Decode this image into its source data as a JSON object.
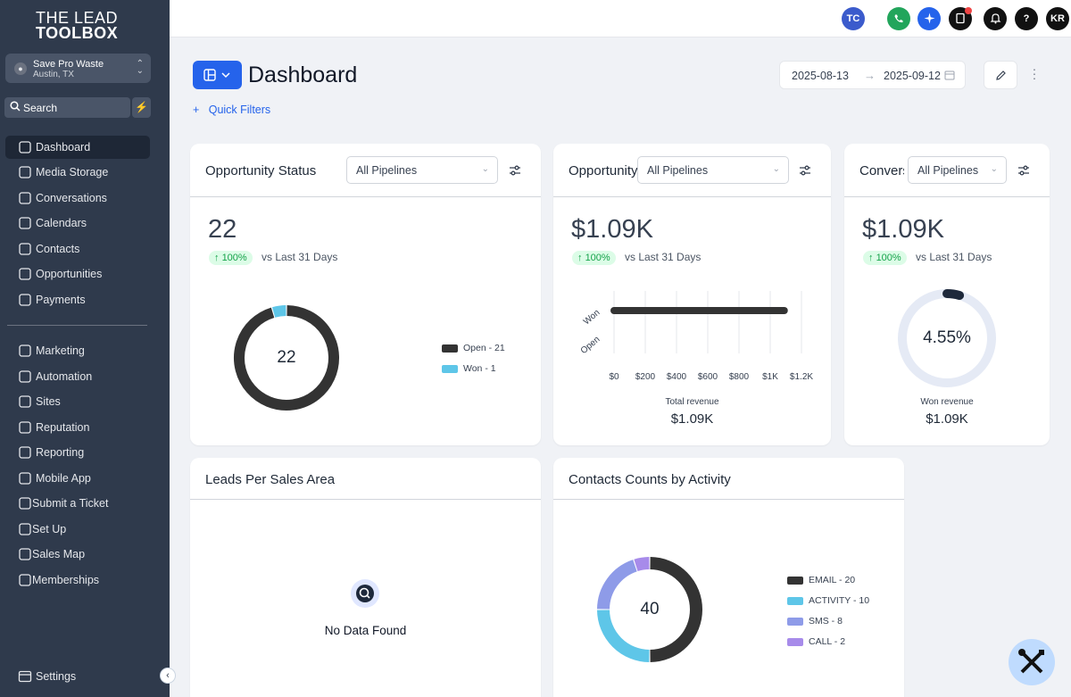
{
  "brand": {
    "line1": "THE LEAD",
    "line2": "TOOLBOX"
  },
  "location": {
    "name": "Save Pro Waste",
    "city": "Austin, TX"
  },
  "sidebar": {
    "search_label": "Search",
    "items": [
      {
        "label": "Dashboard",
        "icon": "dashboard-icon",
        "active": true
      },
      {
        "label": "Media Storage",
        "icon": "image-icon"
      },
      {
        "label": "Conversations",
        "icon": "chat-icon"
      },
      {
        "label": "Calendars",
        "icon": "calendar-icon"
      },
      {
        "label": "Contacts",
        "icon": "contacts-icon"
      },
      {
        "label": "Opportunities",
        "icon": "dollar-circle-icon"
      },
      {
        "label": "Payments",
        "icon": "dollar-icon"
      },
      {
        "label": "Marketing",
        "icon": "cart-icon"
      },
      {
        "label": "Automation",
        "icon": "automation-icon"
      },
      {
        "label": "Sites",
        "icon": "globe-icon"
      },
      {
        "label": "Reputation",
        "icon": "star-icon"
      },
      {
        "label": "Reporting",
        "icon": "chart-icon"
      },
      {
        "label": "Mobile App",
        "icon": "mobile-icon"
      },
      {
        "label": "Submit a Ticket",
        "icon": "wrench-icon"
      },
      {
        "label": "Set Up",
        "icon": "gear-icon"
      },
      {
        "label": "Sales Map",
        "icon": "map-icon"
      },
      {
        "label": "Memberships",
        "icon": "bank-icon"
      }
    ],
    "settings_label": "Settings"
  },
  "topbar": {
    "avatar_tc": "TC",
    "avatar_kr": "KR"
  },
  "header": {
    "title": "Dashboard",
    "quick_filters": "Quick Filters",
    "date_start": "2025-08-13",
    "date_end": "2025-09-12"
  },
  "cards": {
    "opp_status": {
      "title": "Opportunity Status",
      "pipeline": "All Pipelines",
      "value": "22",
      "change": "100%",
      "vs": "vs Last 31 Days",
      "center": "22",
      "legend": [
        "Open - 21",
        "Won - 1"
      ]
    },
    "opp_value": {
      "title": "Opportunity Value",
      "pipeline": "All Pipelines",
      "value": "$1.09K",
      "change": "100%",
      "vs": "vs Last 31 Days",
      "total_label": "Total revenue",
      "total_value": "$1.09K"
    },
    "conversion": {
      "title": "Conversion Rate",
      "pipeline": "All Pipelines",
      "value": "$1.09K",
      "change": "100%",
      "vs": "vs Last 31 Days",
      "center": "4.55%",
      "won_label": "Won revenue",
      "won_value": "$1.09K"
    },
    "leads": {
      "title": "Leads Per Sales Area",
      "empty": "No Data Found"
    },
    "contacts": {
      "title": "Contacts Counts by Activity",
      "center": "40",
      "legend": [
        "EMAIL - 20",
        "ACTIVITY - 10",
        "SMS - 8",
        "CALL - 2"
      ]
    }
  },
  "chart_data": [
    {
      "type": "pie",
      "title": "Opportunity Status",
      "categories": [
        "Open",
        "Won"
      ],
      "values": [
        21,
        1
      ],
      "colors": [
        "#333333",
        "#5ec6e8"
      ]
    },
    {
      "type": "bar",
      "title": "Opportunity Value",
      "categories": [
        "Won",
        "Open"
      ],
      "values": [
        1090,
        0
      ],
      "xlim": [
        0,
        1200
      ],
      "xticks": [
        "$0",
        "$200",
        "$400",
        "$600",
        "$800",
        "$1K",
        "$1.2K"
      ],
      "xlabel": "Total revenue",
      "color": "#333333"
    },
    {
      "type": "pie",
      "title": "Conversion Rate",
      "categories": [
        "Won"
      ],
      "values": [
        4.55
      ],
      "colors": [
        "#1e293b",
        "#e5eaf5"
      ]
    },
    {
      "type": "pie",
      "title": "Contacts Counts by Activity",
      "categories": [
        "EMAIL",
        "ACTIVITY",
        "SMS",
        "CALL"
      ],
      "values": [
        20,
        10,
        8,
        2
      ],
      "colors": [
        "#333333",
        "#5ec6e8",
        "#8e9be8",
        "#a78bea"
      ]
    }
  ]
}
